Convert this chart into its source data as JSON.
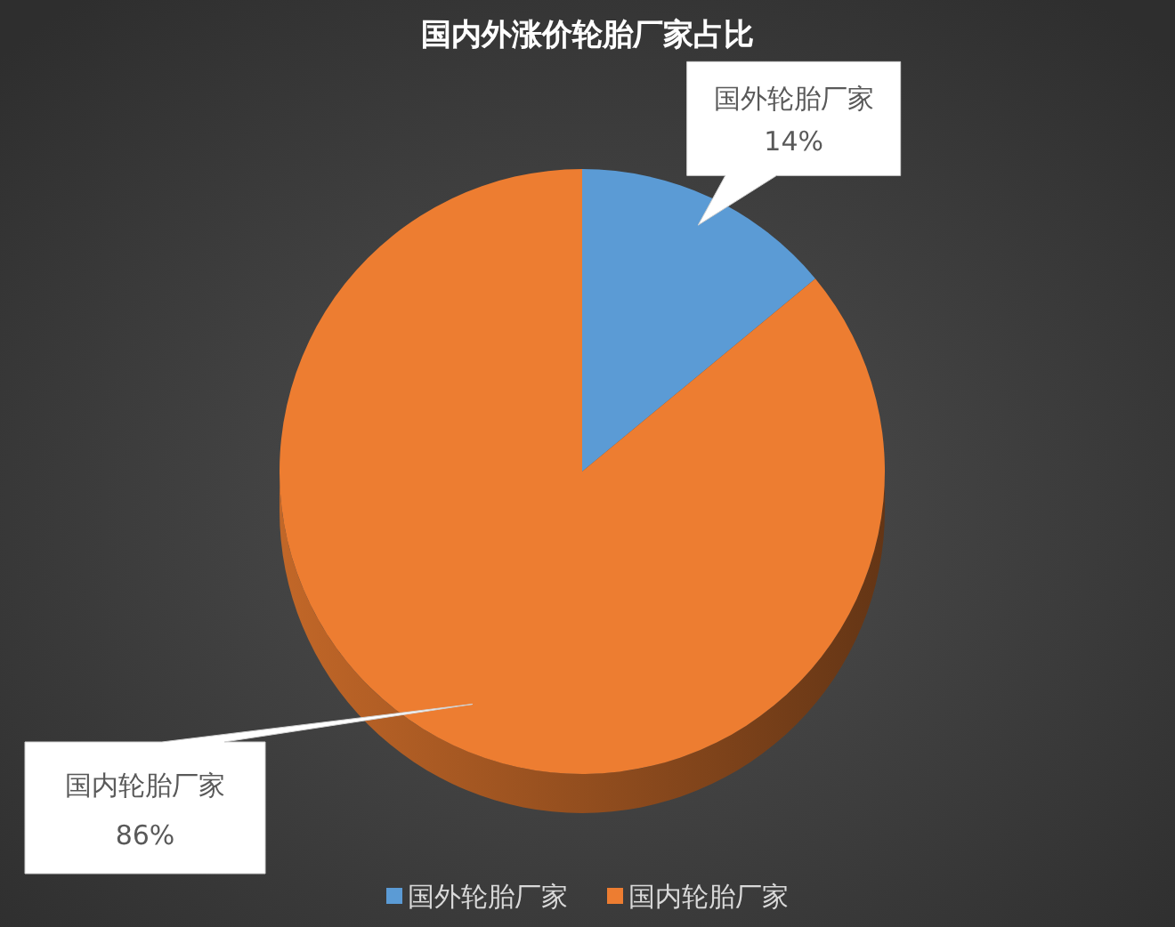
{
  "chart_data": {
    "type": "pie",
    "title": "国内外涨价轮胎厂家占比",
    "categories": [
      "国外轮胎厂家",
      "国内轮胎厂家"
    ],
    "values": [
      14,
      86
    ],
    "colors": [
      "#5b9bd5",
      "#ed7d31"
    ],
    "value_labels": [
      "14%",
      "86%"
    ],
    "legend": "bottom"
  }
}
